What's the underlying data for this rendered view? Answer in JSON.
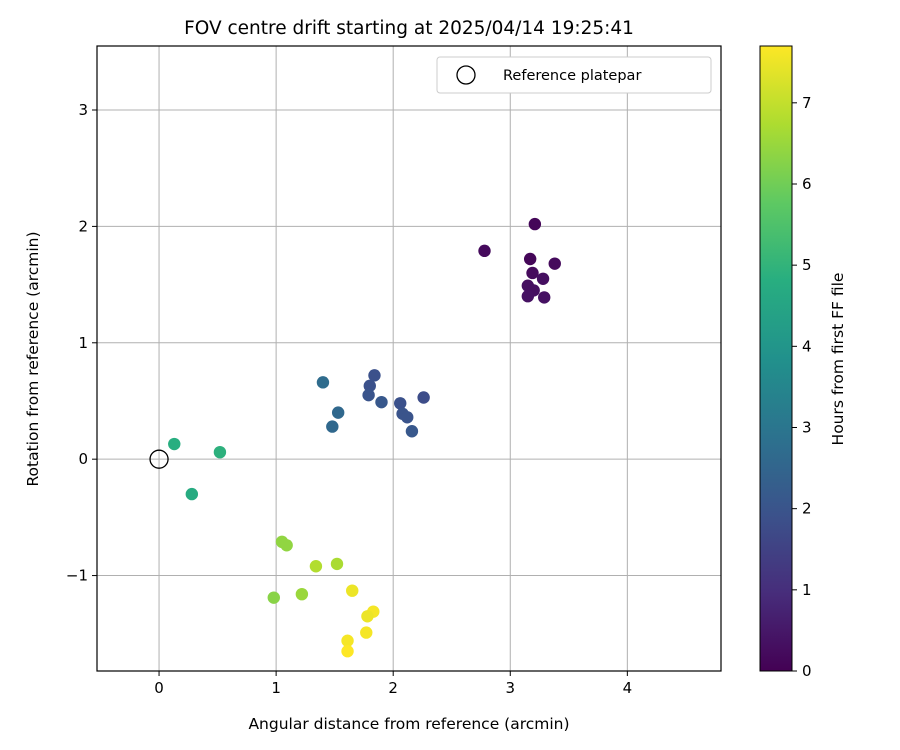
{
  "chart_data": {
    "type": "scatter",
    "title": "FOV centre drift starting at 2025/04/14 19:25:41",
    "xlabel": "Angular distance from reference (arcmin)",
    "ylabel": "Rotation from reference (arcmin)",
    "xlim": [
      -0.53,
      4.8
    ],
    "ylim": [
      -1.82,
      3.55
    ],
    "xticks": [
      0,
      1,
      2,
      3,
      4
    ],
    "yticks": [
      -1,
      0,
      1,
      2,
      3
    ],
    "xtick_labels": [
      "0",
      "1",
      "2",
      "3",
      "4"
    ],
    "ytick_labels": [
      "−1",
      "0",
      "1",
      "2",
      "3"
    ],
    "grid": true,
    "legend": {
      "position": "top-right",
      "entries": [
        {
          "label": "Reference platepar",
          "marker": "open-circle"
        }
      ]
    },
    "reference_point": {
      "x": 0,
      "y": 0
    },
    "colorbar": {
      "label": "Hours from first FF file",
      "range": [
        0,
        7.7
      ],
      "ticks": [
        0,
        1,
        2,
        3,
        4,
        5,
        6,
        7
      ],
      "tick_labels": [
        "0",
        "1",
        "2",
        "3",
        "4",
        "5",
        "6",
        "7"
      ],
      "colormap": "viridis"
    },
    "points": [
      {
        "x": 3.21,
        "y": 2.02,
        "t": 0.1
      },
      {
        "x": 2.78,
        "y": 1.79,
        "t": 0.2
      },
      {
        "x": 3.17,
        "y": 1.72,
        "t": 0.1
      },
      {
        "x": 3.38,
        "y": 1.68,
        "t": 0.2
      },
      {
        "x": 3.19,
        "y": 1.6,
        "t": 0.2
      },
      {
        "x": 3.28,
        "y": 1.55,
        "t": 0.3
      },
      {
        "x": 3.15,
        "y": 1.49,
        "t": 0.3
      },
      {
        "x": 3.2,
        "y": 1.45,
        "t": 0.3
      },
      {
        "x": 3.15,
        "y": 1.4,
        "t": 0.35
      },
      {
        "x": 3.29,
        "y": 1.39,
        "t": 0.35
      },
      {
        "x": 1.84,
        "y": 0.72,
        "t": 1.9
      },
      {
        "x": 1.4,
        "y": 0.66,
        "t": 2.7
      },
      {
        "x": 1.8,
        "y": 0.63,
        "t": 1.9
      },
      {
        "x": 1.79,
        "y": 0.55,
        "t": 2.0
      },
      {
        "x": 2.26,
        "y": 0.53,
        "t": 1.8
      },
      {
        "x": 1.9,
        "y": 0.49,
        "t": 2.1
      },
      {
        "x": 2.06,
        "y": 0.48,
        "t": 1.9
      },
      {
        "x": 1.53,
        "y": 0.4,
        "t": 2.6
      },
      {
        "x": 2.08,
        "y": 0.39,
        "t": 2.0
      },
      {
        "x": 2.12,
        "y": 0.36,
        "t": 2.0
      },
      {
        "x": 1.48,
        "y": 0.28,
        "t": 2.6
      },
      {
        "x": 2.16,
        "y": 0.24,
        "t": 2.1
      },
      {
        "x": 0.13,
        "y": 0.13,
        "t": 4.8
      },
      {
        "x": 0.52,
        "y": 0.06,
        "t": 4.9
      },
      {
        "x": 0.28,
        "y": -0.3,
        "t": 4.7
      },
      {
        "x": 1.05,
        "y": -0.71,
        "t": 6.4
      },
      {
        "x": 1.09,
        "y": -0.74,
        "t": 6.4
      },
      {
        "x": 1.52,
        "y": -0.9,
        "t": 6.7
      },
      {
        "x": 1.34,
        "y": -0.92,
        "t": 6.8
      },
      {
        "x": 1.65,
        "y": -1.13,
        "t": 7.5
      },
      {
        "x": 1.22,
        "y": -1.16,
        "t": 6.5
      },
      {
        "x": 0.98,
        "y": -1.19,
        "t": 6.3
      },
      {
        "x": 1.83,
        "y": -1.31,
        "t": 7.6
      },
      {
        "x": 1.78,
        "y": -1.35,
        "t": 7.5
      },
      {
        "x": 1.77,
        "y": -1.49,
        "t": 7.6
      },
      {
        "x": 1.61,
        "y": -1.56,
        "t": 7.6
      },
      {
        "x": 1.61,
        "y": -1.65,
        "t": 7.7
      }
    ]
  }
}
